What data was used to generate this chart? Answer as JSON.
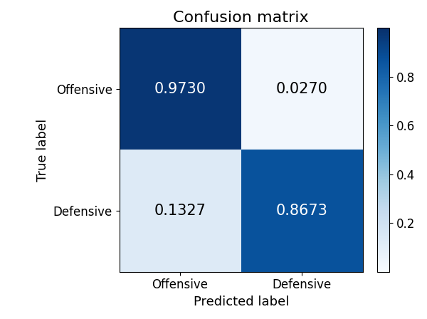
{
  "title": "Confusion matrix",
  "matrix": [
    [
      0.973,
      0.027
    ],
    [
      0.1327,
      0.8673
    ]
  ],
  "classes": [
    "Offensive",
    "Defensive"
  ],
  "xlabel": "Predicted label",
  "ylabel": "True label",
  "cmap": "Blues",
  "vmin": 0.0,
  "vmax": 1.0,
  "colorbar_ticks": [
    0.2,
    0.4,
    0.6,
    0.8
  ],
  "text_colors": {
    "dark_bg": "white",
    "light_bg": "black"
  },
  "threshold": 0.5,
  "cell_fontsize": 15,
  "label_fontsize": 13,
  "tick_fontsize": 12,
  "title_fontsize": 16
}
